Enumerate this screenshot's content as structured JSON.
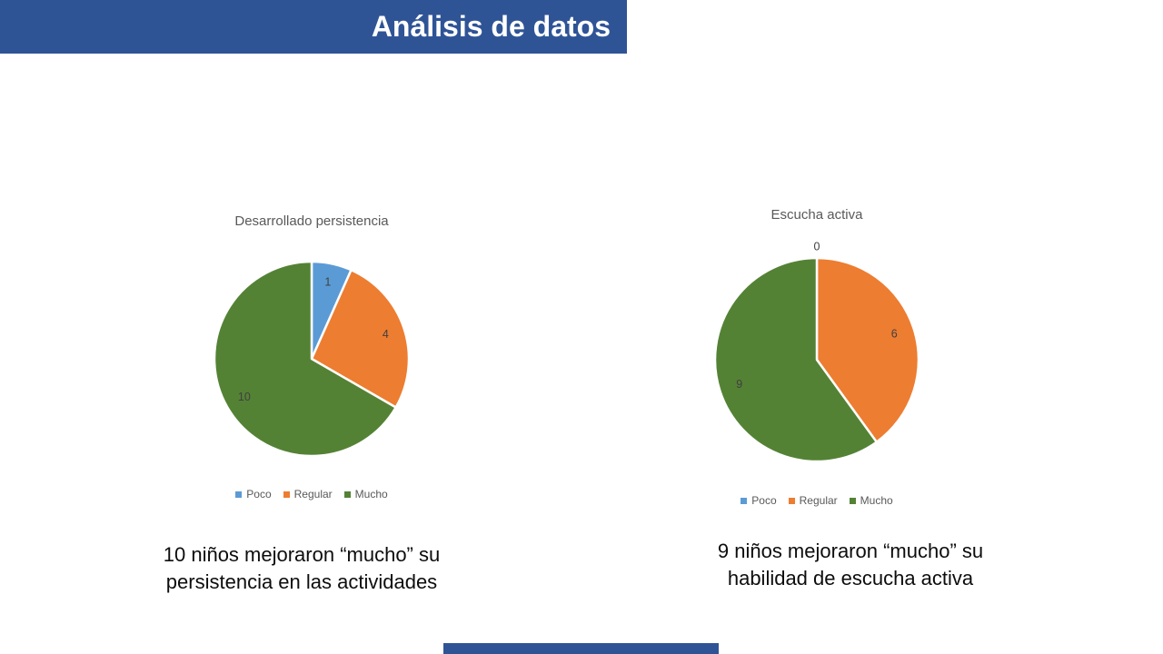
{
  "slide": {
    "title": "Análisis de datos",
    "accent_color": "#2F5496",
    "background_color": "#FFFFFF"
  },
  "chart_data": [
    {
      "type": "pie",
      "title": "Desarrollado persistencia",
      "categories": [
        "Poco",
        "Regular",
        "Mucho"
      ],
      "values": [
        1,
        4,
        10
      ],
      "total": 15,
      "colors": [
        "#5B9BD5",
        "#ED7D31",
        "#548235"
      ],
      "data_labels": [
        1,
        4,
        10
      ],
      "data_label_color": "#404040",
      "legend": [
        "Poco",
        "Regular",
        "Mucho"
      ],
      "legend_position": "bottom",
      "start_angle_deg": 0,
      "direction": "clockwise"
    },
    {
      "type": "pie",
      "title": "Escucha activa",
      "categories": [
        "Poco",
        "Regular",
        "Mucho"
      ],
      "values": [
        0,
        6,
        9
      ],
      "total": 15,
      "colors": [
        "#5B9BD5",
        "#ED7D31",
        "#548235"
      ],
      "data_labels": [
        0,
        6,
        9
      ],
      "data_label_color": "#404040",
      "legend": [
        "Poco",
        "Regular",
        "Mucho"
      ],
      "legend_position": "bottom",
      "start_angle_deg": 0,
      "direction": "clockwise"
    }
  ],
  "captions": [
    {
      "lines": [
        "10 niños mejoraron “mucho” su",
        "persistencia en las actividades"
      ]
    },
    {
      "lines": [
        "9 niños mejoraron “mucho” su",
        "habilidad de escucha activa"
      ]
    }
  ]
}
